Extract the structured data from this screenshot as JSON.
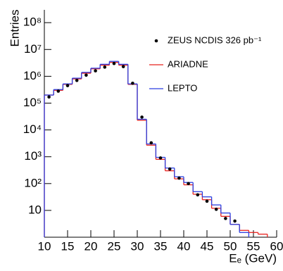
{
  "chart_data": {
    "type": "histogram",
    "y_label": "Entries",
    "x_label": "Eₑ (GeV)",
    "log_y": true,
    "legend": "upper right",
    "bins": [
      10,
      12,
      14,
      16,
      18,
      20,
      22,
      24,
      26,
      28,
      30,
      32,
      34,
      36,
      38,
      40,
      42,
      44,
      46,
      48,
      50,
      52,
      54,
      56,
      58,
      60
    ],
    "xlim": [
      10,
      60
    ],
    "xticks": [
      10,
      15,
      20,
      25,
      30,
      35,
      40,
      45,
      50,
      55,
      60
    ],
    "ylim": [
      1,
      300000000
    ],
    "yticks": [
      10,
      {
        "value": 100,
        "label": "10²"
      },
      {
        "value": 1000,
        "label": "10³"
      },
      {
        "value": 10000,
        "label": "10⁴"
      },
      {
        "value": 100000,
        "label": "10⁵"
      },
      {
        "value": 1000000,
        "label": "10⁶"
      },
      {
        "value": 10000000,
        "label": "10⁷"
      },
      {
        "value": 100000000,
        "label": "10⁸"
      }
    ],
    "series": [
      {
        "name": "ZEUS NCDIS 326 pb⁻¹",
        "style": "points",
        "color": "#000000",
        "values": [
          170000,
          280000,
          450000,
          700000,
          1100000,
          1600000,
          2200000,
          3000000,
          2300000,
          550000,
          30000,
          3300,
          900,
          350,
          160,
          100,
          38,
          22,
          11,
          5,
          4,
          null,
          null,
          null,
          null
        ]
      },
      {
        "name": "ARIADNE",
        "style": "step",
        "color": "#e8231f",
        "values": [
          200000,
          300000,
          500000,
          800000,
          1300000,
          1900000,
          2600000,
          3300000,
          2600000,
          500000,
          23000,
          2700,
          800,
          300,
          150,
          90,
          40,
          25,
          12,
          6,
          3,
          1.8,
          1.5,
          1.3,
          null
        ]
      },
      {
        "name": "LEPTO",
        "style": "step",
        "color": "#2b3fe0",
        "values": [
          200000,
          320000,
          520000,
          850000,
          1400000,
          2000000,
          2800000,
          3600000,
          2800000,
          520000,
          25000,
          3000,
          950,
          380,
          180,
          110,
          50,
          32,
          16,
          8,
          3,
          1.5,
          null,
          null,
          null
        ]
      }
    ]
  }
}
